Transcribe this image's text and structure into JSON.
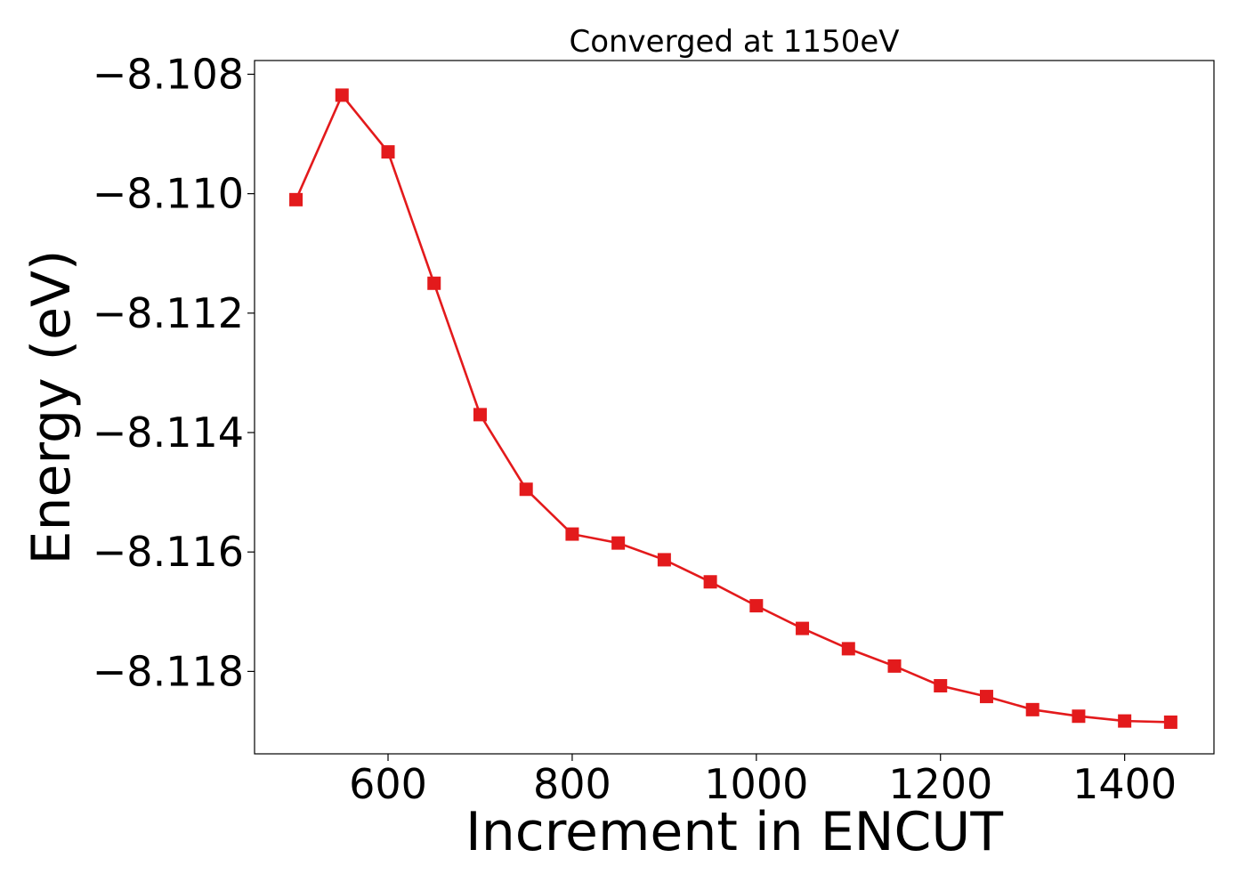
{
  "chart_data": {
    "type": "line",
    "title": "Converged at 1150eV",
    "xlabel": "Increment in ENCUT",
    "ylabel": "Energy (eV)",
    "xlim": [
      455,
      1497
    ],
    "ylim": [
      -8.11938,
      -8.10777
    ],
    "x_ticks": [
      600,
      800,
      1000,
      1200,
      1400
    ],
    "x_tick_labels": [
      "600",
      "800",
      "1000",
      "1200",
      "1400"
    ],
    "y_ticks": [
      -8.108,
      -8.11,
      -8.112,
      -8.114,
      -8.116,
      -8.118
    ],
    "y_tick_labels": [
      "−8.108",
      "−8.110",
      "−8.112",
      "−8.114",
      "−8.116",
      "−8.118"
    ],
    "grid": false,
    "series": [
      {
        "color": "#e31a1c",
        "marker": "square",
        "x": [
          500,
          550,
          600,
          650,
          700,
          750,
          800,
          850,
          900,
          950,
          1000,
          1050,
          1100,
          1150,
          1200,
          1250,
          1300,
          1350,
          1400,
          1450
        ],
        "y": [
          -8.1101,
          -8.10835,
          -8.1093,
          -8.1115,
          -8.1137,
          -8.11495,
          -8.1157,
          -8.11585,
          -8.11613,
          -8.1165,
          -8.1169,
          -8.11728,
          -8.11762,
          -8.11791,
          -8.11824,
          -8.11842,
          -8.11864,
          -8.11875,
          -8.11883,
          -8.11885
        ]
      }
    ]
  }
}
